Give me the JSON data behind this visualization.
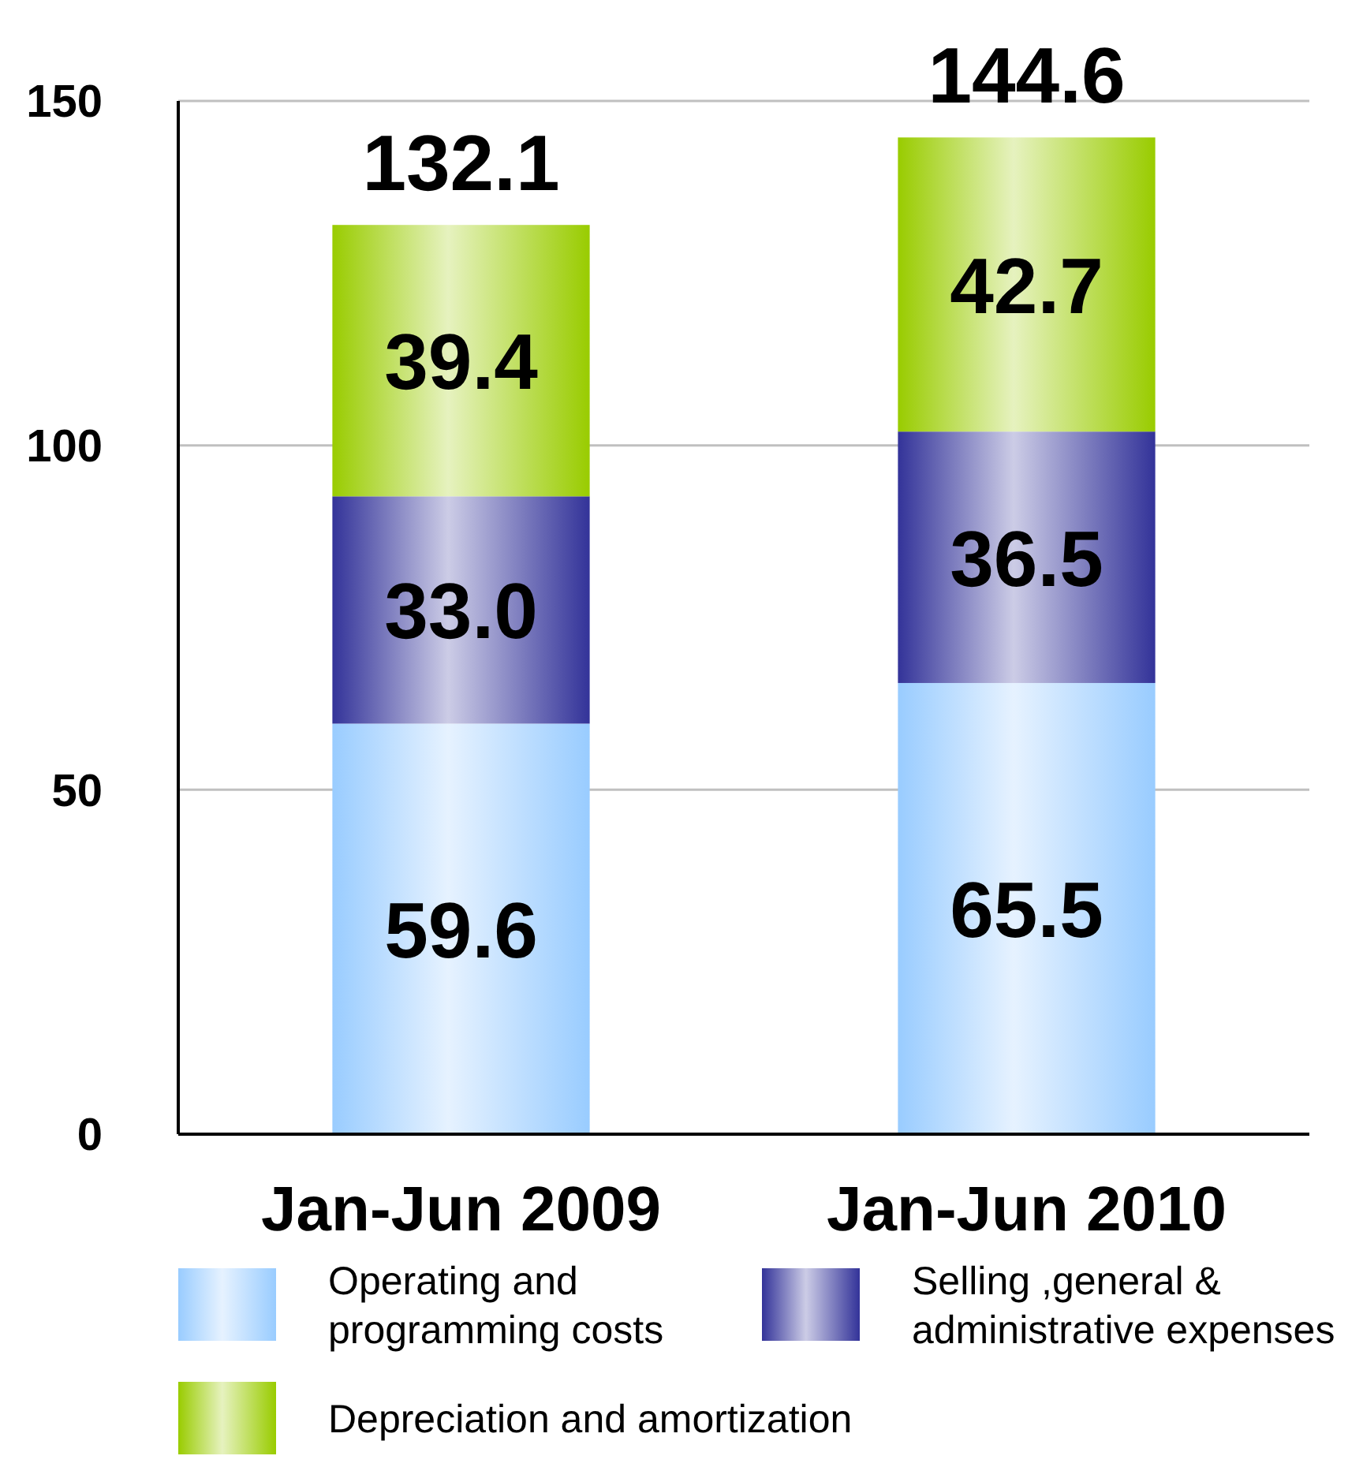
{
  "chart_data": {
    "type": "bar",
    "stacked": true,
    "categories": [
      "Jan-Jun 2009",
      "Jan-Jun 2010"
    ],
    "series": [
      {
        "name": "Operating and programming costs",
        "color": "#99ccff",
        "values": [
          59.6,
          65.5
        ],
        "value_labels": [
          "59.6",
          "65.5"
        ]
      },
      {
        "name": "Selling ,general & administrative expenses",
        "color": "#333399",
        "values": [
          33.0,
          36.5
        ],
        "value_labels": [
          "33.0",
          "36.5"
        ]
      },
      {
        "name": "Depreciation and amortization",
        "color": "#99cc00",
        "values": [
          39.4,
          42.7
        ],
        "value_labels": [
          "39.4",
          "42.7"
        ]
      }
    ],
    "totals": [
      "132.1",
      "144.6"
    ],
    "ylim": [
      0,
      150
    ],
    "yticks": [
      0,
      50,
      100,
      150
    ],
    "grid": "y",
    "legend": "bottom"
  }
}
